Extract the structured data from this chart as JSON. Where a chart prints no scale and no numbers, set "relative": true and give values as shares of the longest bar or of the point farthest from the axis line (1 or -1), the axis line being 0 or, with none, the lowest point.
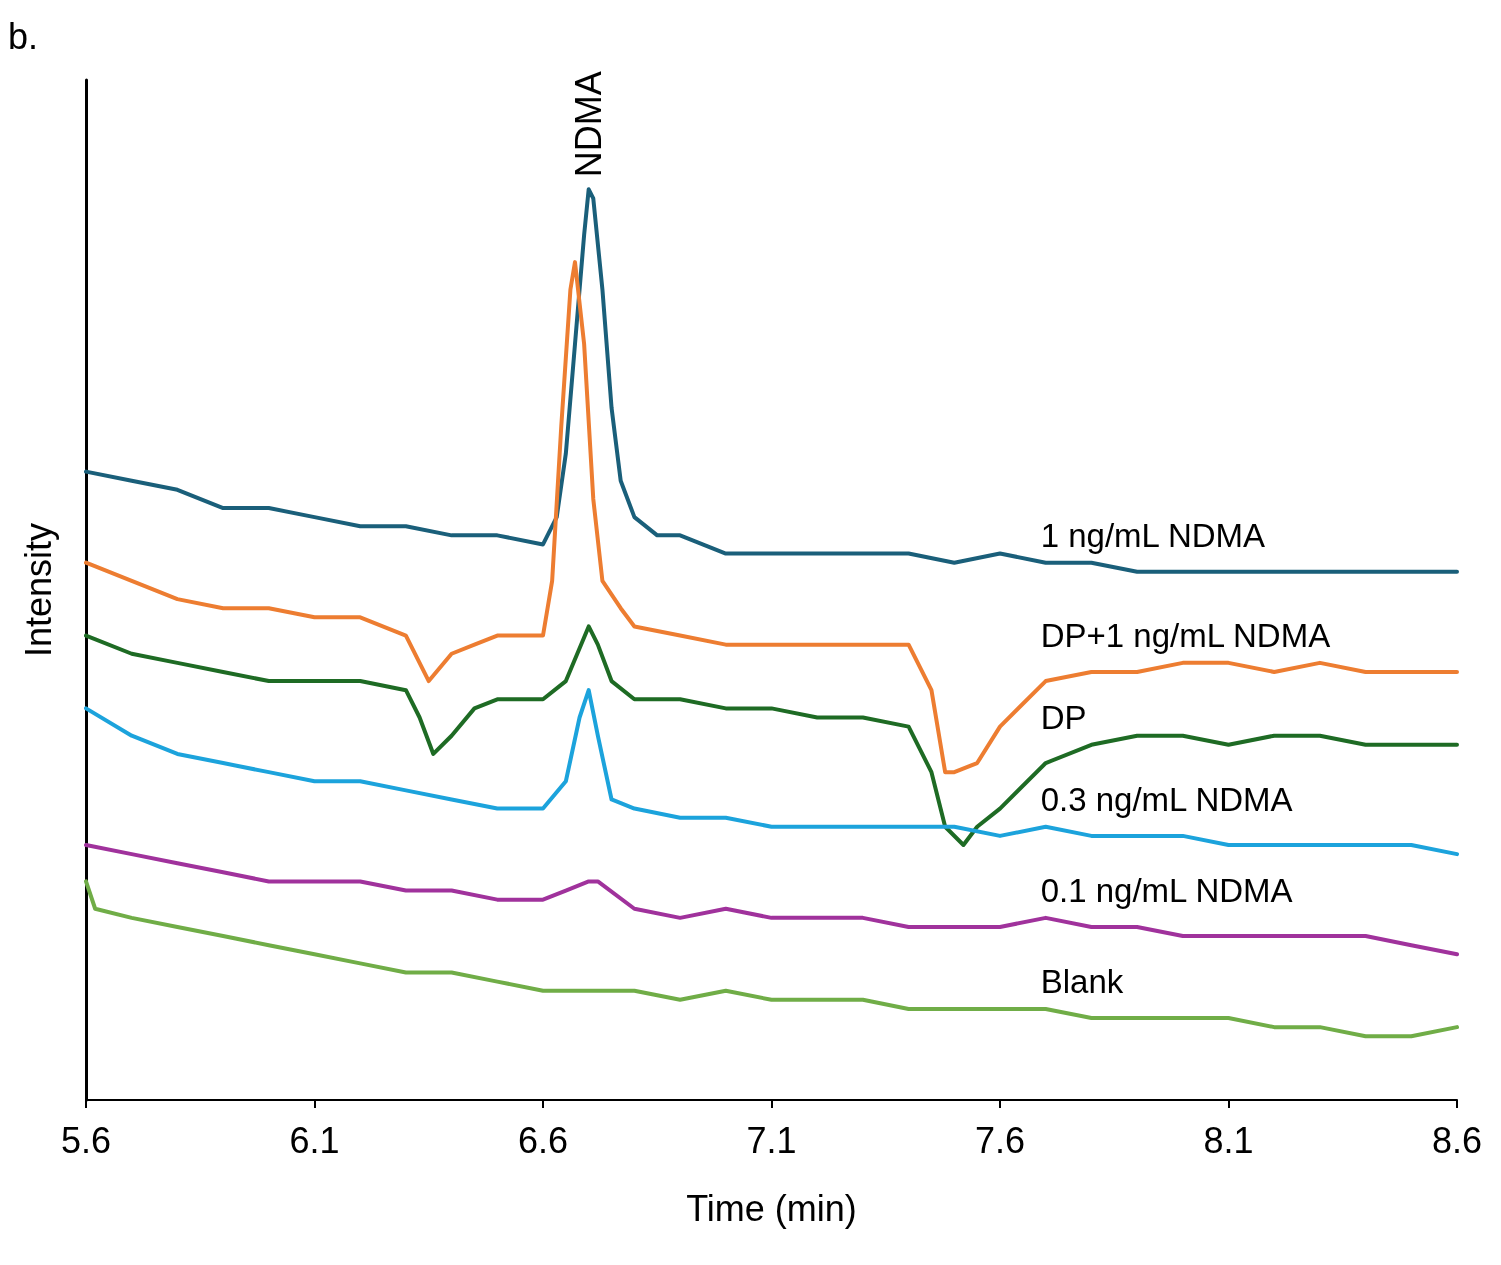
{
  "chart_data": {
    "type": "line",
    "relative": true,
    "xlabel": "Time (min)",
    "ylabel": "Intensity",
    "xlim": [
      5.6,
      8.6
    ],
    "xticks": [
      5.6,
      6.1,
      6.6,
      7.1,
      7.6,
      8.1,
      8.6
    ],
    "grid": false,
    "legend": false,
    "marker": "none",
    "line_style": "solid",
    "annotations": [
      "b.",
      {
        "text": "NDMA",
        "x": 6.7,
        "y": 1
      }
    ],
    "series": [
      {
        "name": "1 ng/mL NDMA",
        "color": "#1a5f7a",
        "x": [
          5.6,
          5.7,
          5.8,
          5.9,
          6.0,
          6.1,
          6.2,
          6.3,
          6.4,
          6.5,
          6.6,
          6.63,
          6.65,
          6.67,
          6.69,
          6.7,
          6.71,
          6.73,
          6.75,
          6.77,
          6.8,
          6.85,
          6.9,
          7.0,
          7.1,
          7.2,
          7.3,
          7.4,
          7.5,
          7.6,
          7.7,
          7.8,
          7.9,
          8.0,
          8.1,
          8.2,
          8.3,
          8.4,
          8.5,
          8.6
        ],
        "values": [
          0.69,
          0.68,
          0.67,
          0.65,
          0.65,
          0.64,
          0.63,
          0.63,
          0.62,
          0.62,
          0.61,
          0.64,
          0.71,
          0.83,
          0.95,
          1,
          0.99,
          0.89,
          0.76,
          0.68,
          0.64,
          0.62,
          0.62,
          0.6,
          0.6,
          0.6,
          0.6,
          0.6,
          0.59,
          0.6,
          0.59,
          0.59,
          0.58,
          0.58,
          0.58,
          0.58,
          0.58,
          0.58,
          0.58,
          0.58
        ]
      },
      {
        "name": "DP+1 ng/mL NDMA",
        "color": "#ed7d31",
        "x": [
          5.6,
          5.7,
          5.8,
          5.9,
          6.0,
          6.1,
          6.2,
          6.3,
          6.35,
          6.4,
          6.45,
          6.5,
          6.6,
          6.62,
          6.64,
          6.66,
          6.67,
          6.69,
          6.71,
          6.73,
          6.77,
          6.8,
          6.9,
          7.0,
          7.1,
          7.2,
          7.3,
          7.4,
          7.45,
          7.48,
          7.5,
          7.55,
          7.6,
          7.7,
          7.8,
          7.9,
          8.0,
          8.1,
          8.2,
          8.3,
          8.4,
          8.5,
          8.6
        ],
        "values": [
          0.59,
          0.57,
          0.55,
          0.54,
          0.54,
          0.53,
          0.53,
          0.51,
          0.46,
          0.49,
          0.5,
          0.51,
          0.51,
          0.57,
          0.74,
          0.89,
          0.92,
          0.83,
          0.66,
          0.57,
          0.54,
          0.52,
          0.51,
          0.5,
          0.5,
          0.5,
          0.5,
          0.5,
          0.45,
          0.36,
          0.36,
          0.37,
          0.41,
          0.46,
          0.47,
          0.47,
          0.48,
          0.48,
          0.47,
          0.48,
          0.47,
          0.47,
          0.47
        ]
      },
      {
        "name": "DP",
        "color": "#1e6b24",
        "x": [
          5.6,
          5.7,
          5.8,
          5.9,
          6.0,
          6.1,
          6.2,
          6.3,
          6.33,
          6.36,
          6.4,
          6.45,
          6.5,
          6.6,
          6.65,
          6.7,
          6.72,
          6.75,
          6.8,
          6.9,
          7.0,
          7.1,
          7.2,
          7.3,
          7.4,
          7.45,
          7.48,
          7.52,
          7.55,
          7.6,
          7.7,
          7.8,
          7.9,
          8.0,
          8.1,
          8.2,
          8.3,
          8.4,
          8.5,
          8.6
        ],
        "values": [
          0.51,
          0.49,
          0.48,
          0.47,
          0.46,
          0.46,
          0.46,
          0.45,
          0.42,
          0.38,
          0.4,
          0.43,
          0.44,
          0.44,
          0.46,
          0.52,
          0.5,
          0.46,
          0.44,
          0.44,
          0.43,
          0.43,
          0.42,
          0.42,
          0.41,
          0.36,
          0.3,
          0.28,
          0.3,
          0.32,
          0.37,
          0.39,
          0.4,
          0.4,
          0.39,
          0.4,
          0.4,
          0.39,
          0.39,
          0.39
        ]
      },
      {
        "name": "0.3 ng/mL NDMA",
        "color": "#1ca3dc",
        "x": [
          5.6,
          5.7,
          5.8,
          5.9,
          6.0,
          6.1,
          6.2,
          6.3,
          6.4,
          6.5,
          6.6,
          6.65,
          6.68,
          6.7,
          6.72,
          6.75,
          6.8,
          6.9,
          7.0,
          7.1,
          7.2,
          7.3,
          7.4,
          7.5,
          7.6,
          7.7,
          7.8,
          7.9,
          8.0,
          8.1,
          8.2,
          8.3,
          8.4,
          8.5,
          8.6
        ],
        "values": [
          0.43,
          0.4,
          0.38,
          0.37,
          0.36,
          0.35,
          0.35,
          0.34,
          0.33,
          0.32,
          0.32,
          0.35,
          0.42,
          0.45,
          0.4,
          0.33,
          0.32,
          0.31,
          0.31,
          0.3,
          0.3,
          0.3,
          0.3,
          0.3,
          0.29,
          0.3,
          0.29,
          0.29,
          0.29,
          0.28,
          0.28,
          0.28,
          0.28,
          0.28,
          0.27
        ]
      },
      {
        "name": "0.1 ng/mL NDMA",
        "color": "#a0329c",
        "x": [
          5.6,
          5.7,
          5.8,
          5.9,
          6.0,
          6.1,
          6.2,
          6.3,
          6.4,
          6.5,
          6.6,
          6.65,
          6.7,
          6.72,
          6.8,
          6.9,
          7.0,
          7.1,
          7.2,
          7.3,
          7.4,
          7.5,
          7.6,
          7.7,
          7.8,
          7.9,
          8.0,
          8.1,
          8.2,
          8.3,
          8.4,
          8.5,
          8.6
        ],
        "values": [
          0.28,
          0.27,
          0.26,
          0.25,
          0.24,
          0.24,
          0.24,
          0.23,
          0.23,
          0.22,
          0.22,
          0.23,
          0.24,
          0.24,
          0.21,
          0.2,
          0.21,
          0.2,
          0.2,
          0.2,
          0.19,
          0.19,
          0.19,
          0.2,
          0.19,
          0.19,
          0.18,
          0.18,
          0.18,
          0.18,
          0.18,
          0.17,
          0.16
        ]
      },
      {
        "name": "Blank",
        "color": "#70ad47",
        "x": [
          5.6,
          5.62,
          5.7,
          5.8,
          5.9,
          6.0,
          6.1,
          6.2,
          6.3,
          6.4,
          6.5,
          6.6,
          6.7,
          6.8,
          6.9,
          7.0,
          7.1,
          7.2,
          7.3,
          7.4,
          7.5,
          7.6,
          7.7,
          7.8,
          7.9,
          8.0,
          8.1,
          8.2,
          8.3,
          8.4,
          8.5,
          8.6
        ],
        "values": [
          0.24,
          0.21,
          0.2,
          0.19,
          0.18,
          0.17,
          0.16,
          0.15,
          0.14,
          0.14,
          0.13,
          0.12,
          0.12,
          0.12,
          0.11,
          0.12,
          0.11,
          0.11,
          0.11,
          0.1,
          0.1,
          0.1,
          0.1,
          0.09,
          0.09,
          0.09,
          0.09,
          0.08,
          0.08,
          0.07,
          0.07,
          0.08
        ]
      }
    ]
  }
}
